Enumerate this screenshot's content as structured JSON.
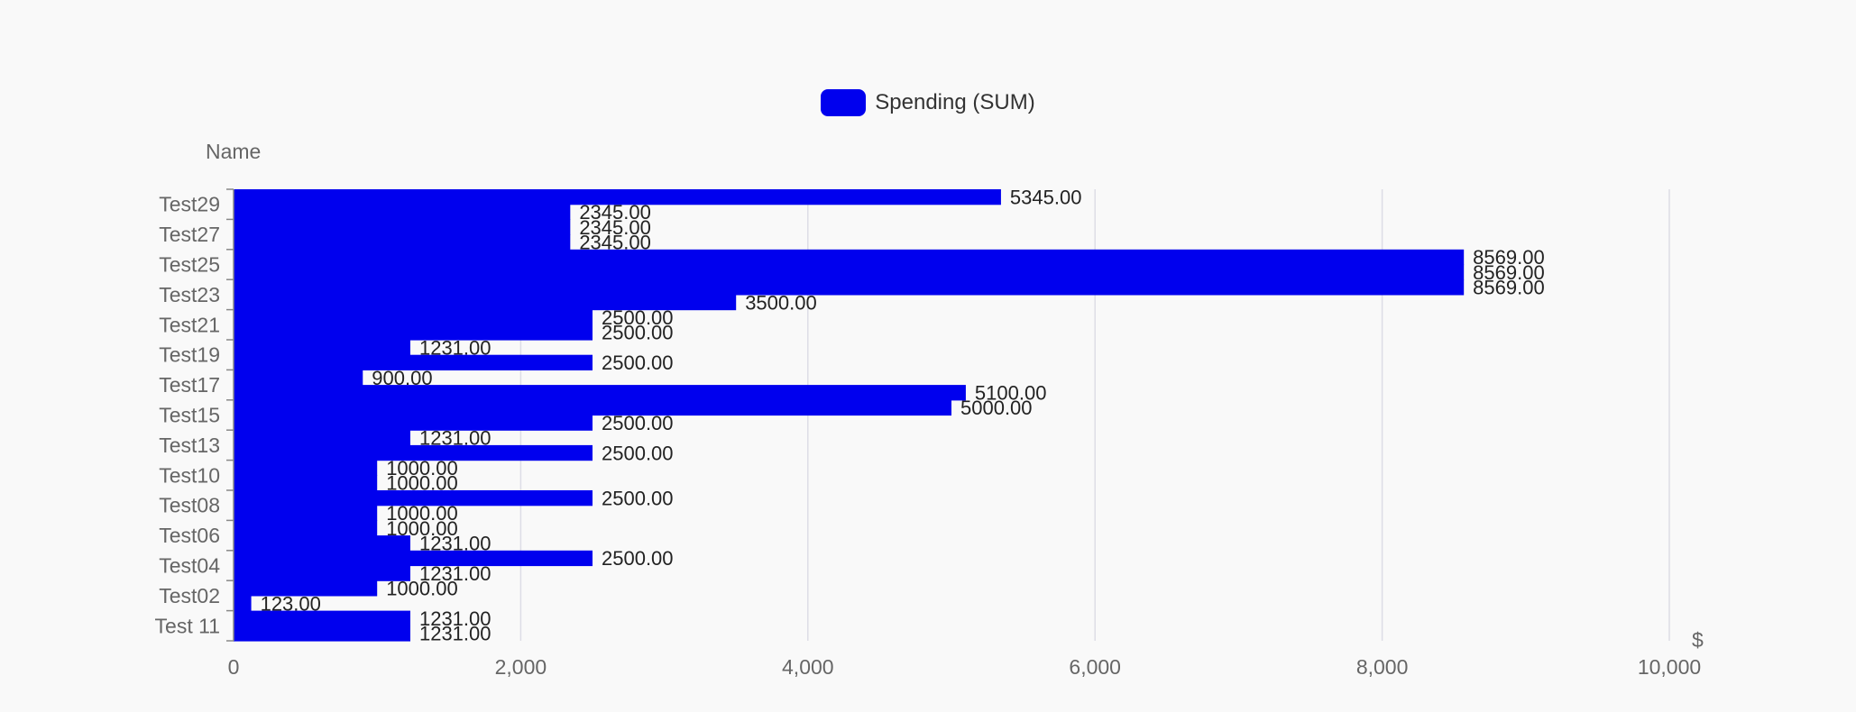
{
  "chart_data": {
    "type": "bar",
    "orientation": "horizontal",
    "legend": {
      "position": "top-center",
      "entries": [
        {
          "label": "Spending (SUM)",
          "color": "#0000ee"
        }
      ]
    },
    "ylabel": "Name",
    "xlabel": "$",
    "xlim": [
      0,
      10000
    ],
    "xticks": [
      "0",
      "2,000",
      "4,000",
      "6,000",
      "8,000",
      "10,000"
    ],
    "grid": true,
    "ytick_labels": [
      "Test29",
      "Test27",
      "Test25",
      "Test23",
      "Test21",
      "Test19",
      "Test17",
      "Test15",
      "Test13",
      "Test10",
      "Test08",
      "Test06",
      "Test04",
      "Test02",
      "Test 11"
    ],
    "values": [
      5345,
      2345,
      2345,
      2345,
      8569,
      8569,
      8569,
      3500,
      2500,
      2500,
      1231,
      2500,
      900,
      5100,
      5000,
      2500,
      1231,
      2500,
      1000,
      1000,
      2500,
      1000,
      1000,
      1231,
      2500,
      1231,
      1000,
      123,
      1231,
      1231
    ],
    "data_labels": [
      "5345.00",
      "2345.00",
      "2345.00",
      "2345.00",
      "8569.00",
      "8569.00",
      "8569.00",
      "3500.00",
      "2500.00",
      "2500.00",
      "1231.00",
      "2500.00",
      "900.00",
      "5100.00",
      "5000.00",
      "2500.00",
      "1231.00",
      "2500.00",
      "1000.00",
      "1000.00",
      "2500.00",
      "1000.00",
      "1000.00",
      "1231.00",
      "2500.00",
      "1231.00",
      "1000.00",
      "123.00",
      "1231.00",
      "1231.00"
    ],
    "colors": {
      "bar": "#0000ee",
      "grid": "#dddde6",
      "tick_text": "#666666",
      "label_text": "#222222"
    }
  }
}
